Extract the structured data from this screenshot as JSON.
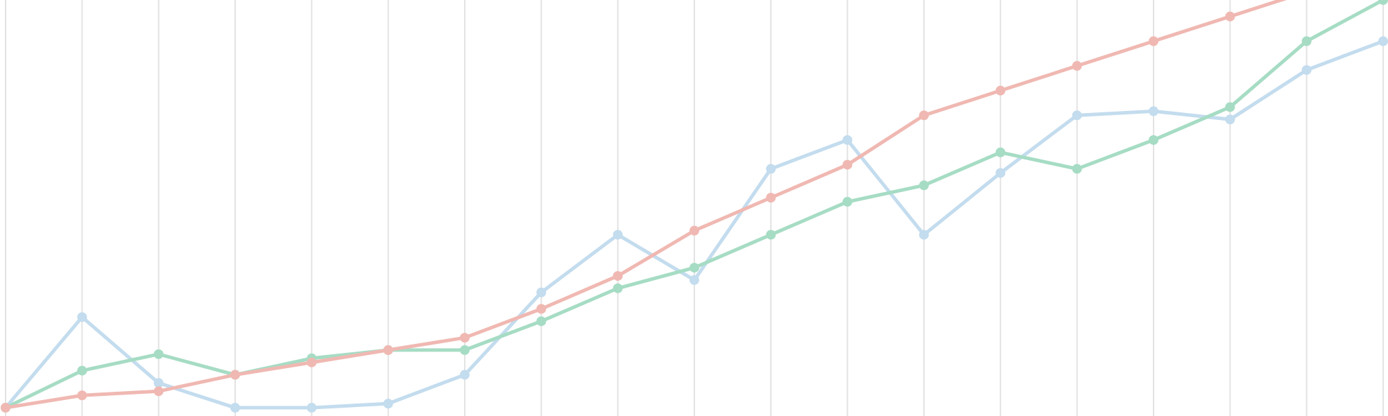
{
  "chart_data": {
    "type": "line",
    "title": "",
    "xlabel": "",
    "ylabel": "",
    "grid": "vertical",
    "legend": "none",
    "x": [
      0,
      1,
      2,
      3,
      4,
      5,
      6,
      7,
      8,
      9,
      10,
      11,
      12,
      13,
      14,
      15,
      16,
      17,
      18
    ],
    "xlim": [
      0,
      18
    ],
    "ylim": [
      0,
      100
    ],
    "series": [
      {
        "color": "#c3dcee",
        "values": [
          1,
          23,
          7,
          1,
          1,
          2,
          9,
          29,
          43,
          32,
          59,
          66,
          43,
          58,
          72,
          73,
          71,
          83,
          90
        ]
      },
      {
        "color": "#a6dcc4",
        "values": [
          1,
          10,
          14,
          9,
          13,
          15,
          15,
          22,
          30,
          35,
          43,
          51,
          55,
          63,
          59,
          66,
          74,
          90,
          100
        ]
      },
      {
        "color": "#f0b8b2",
        "values": [
          1,
          4,
          5,
          9,
          12,
          15,
          18,
          25,
          33,
          44,
          52,
          60,
          72,
          78,
          84,
          90,
          96,
          102,
          108
        ]
      }
    ]
  }
}
